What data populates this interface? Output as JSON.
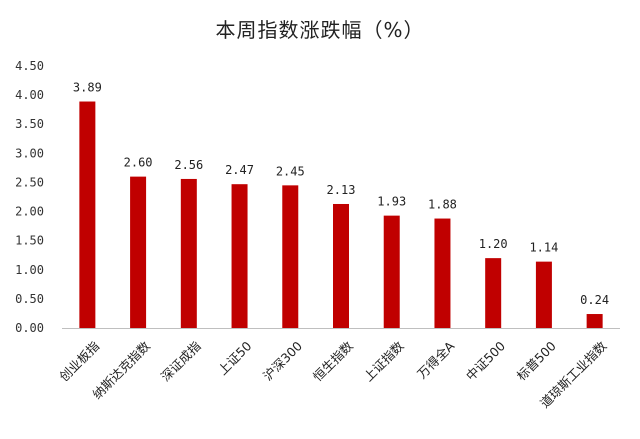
{
  "chart_data": {
    "type": "bar",
    "title": "本周指数涨跌幅（%）",
    "xlabel": "",
    "ylabel": "",
    "categories": [
      "创业板指",
      "纳斯达克指数",
      "深证成指",
      "上证50",
      "沪深300",
      "恒生指数",
      "上证指数",
      "万得全A",
      "中证500",
      "标普500",
      "道琼斯工业指数"
    ],
    "values": [
      3.89,
      2.6,
      2.56,
      2.47,
      2.45,
      2.13,
      1.93,
      1.88,
      1.2,
      1.14,
      0.24
    ],
    "value_labels": [
      "3.89",
      "2.60",
      "2.56",
      "2.47",
      "2.45",
      "2.13",
      "1.93",
      "1.88",
      "1.20",
      "1.14",
      "0.24"
    ],
    "yticks": [
      "0.00",
      "0.50",
      "1.00",
      "1.50",
      "2.00",
      "2.50",
      "3.00",
      "3.50",
      "4.00",
      "4.50"
    ],
    "ylim": [
      0,
      4.5
    ],
    "grid": false,
    "legend": "none",
    "bar_color": "#C00000"
  }
}
